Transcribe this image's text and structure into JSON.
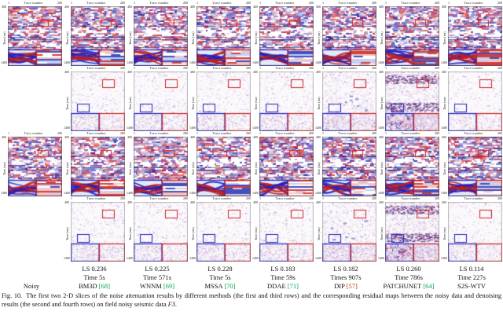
{
  "figure": {
    "panel_x_title": "Trace number",
    "panel_y_title": "Time (ms)",
    "x_tick_min": "1",
    "x_tick_max": "200",
    "y_tick_min": "400",
    "y_tick_max": "1400",
    "rows": [
      {
        "type": "seismic",
        "cols": [
          1,
          1,
          1,
          1,
          1,
          1,
          1,
          1
        ]
      },
      {
        "type": "residual",
        "cols": [
          0,
          1,
          1,
          1,
          1,
          1,
          1,
          1
        ]
      },
      {
        "type": "seismic",
        "cols": [
          1,
          1,
          1,
          1,
          1,
          1,
          1,
          1
        ]
      },
      {
        "type": "residual",
        "cols": [
          0,
          1,
          1,
          1,
          1,
          1,
          1,
          1
        ]
      }
    ],
    "colors": {
      "roi_red": "#cc2222",
      "roi_blue": "#2222bb",
      "inset_left_border": "#2222bb",
      "inset_right_border": "#cc2222",
      "citation_green": "#00a550",
      "citation_red": "#cc3311"
    }
  },
  "methods": [
    {
      "label": "Noisy",
      "ls": "",
      "time": "",
      "ref": "",
      "ref_color": ""
    },
    {
      "label": "BM3D",
      "ls": "LS 0.236",
      "time": "Time 5s",
      "ref": "[68]",
      "ref_color": "#00a550"
    },
    {
      "label": "WNNM",
      "ls": "LS 0.225",
      "time": "Time 571s",
      "ref": "[69]",
      "ref_color": "#00a550"
    },
    {
      "label": "MSSA",
      "ls": "LS 0.228",
      "time": "Time 5s",
      "ref": "[70]",
      "ref_color": "#00a550"
    },
    {
      "label": "DDAE",
      "ls": "LS 0.183",
      "time": "Time 59s",
      "ref": "[71]",
      "ref_color": "#00a550"
    },
    {
      "label": "DIP",
      "ls": "LS 0.182",
      "time": "Times 907s",
      "ref": "[57]",
      "ref_color": "#cc3311"
    },
    {
      "label": "PATCHUNET",
      "ls": "LS 0.260",
      "time": "Time 786s",
      "ref": "[64]",
      "ref_color": "#00a550"
    },
    {
      "label": "S2S-WTV",
      "ls": "LS 0.114",
      "time": "Time 227s",
      "ref": "",
      "ref_color": ""
    }
  ],
  "caption": {
    "tag": "Fig. 10.",
    "body": "The first two 2-D slices of the noise attenuation results by different methods (the first and third rows) and the corresponding residual maps between the noisy data and denoising results (the second and fourth rows) on field noisy seismic data",
    "dataset": "F3",
    "end": "."
  }
}
